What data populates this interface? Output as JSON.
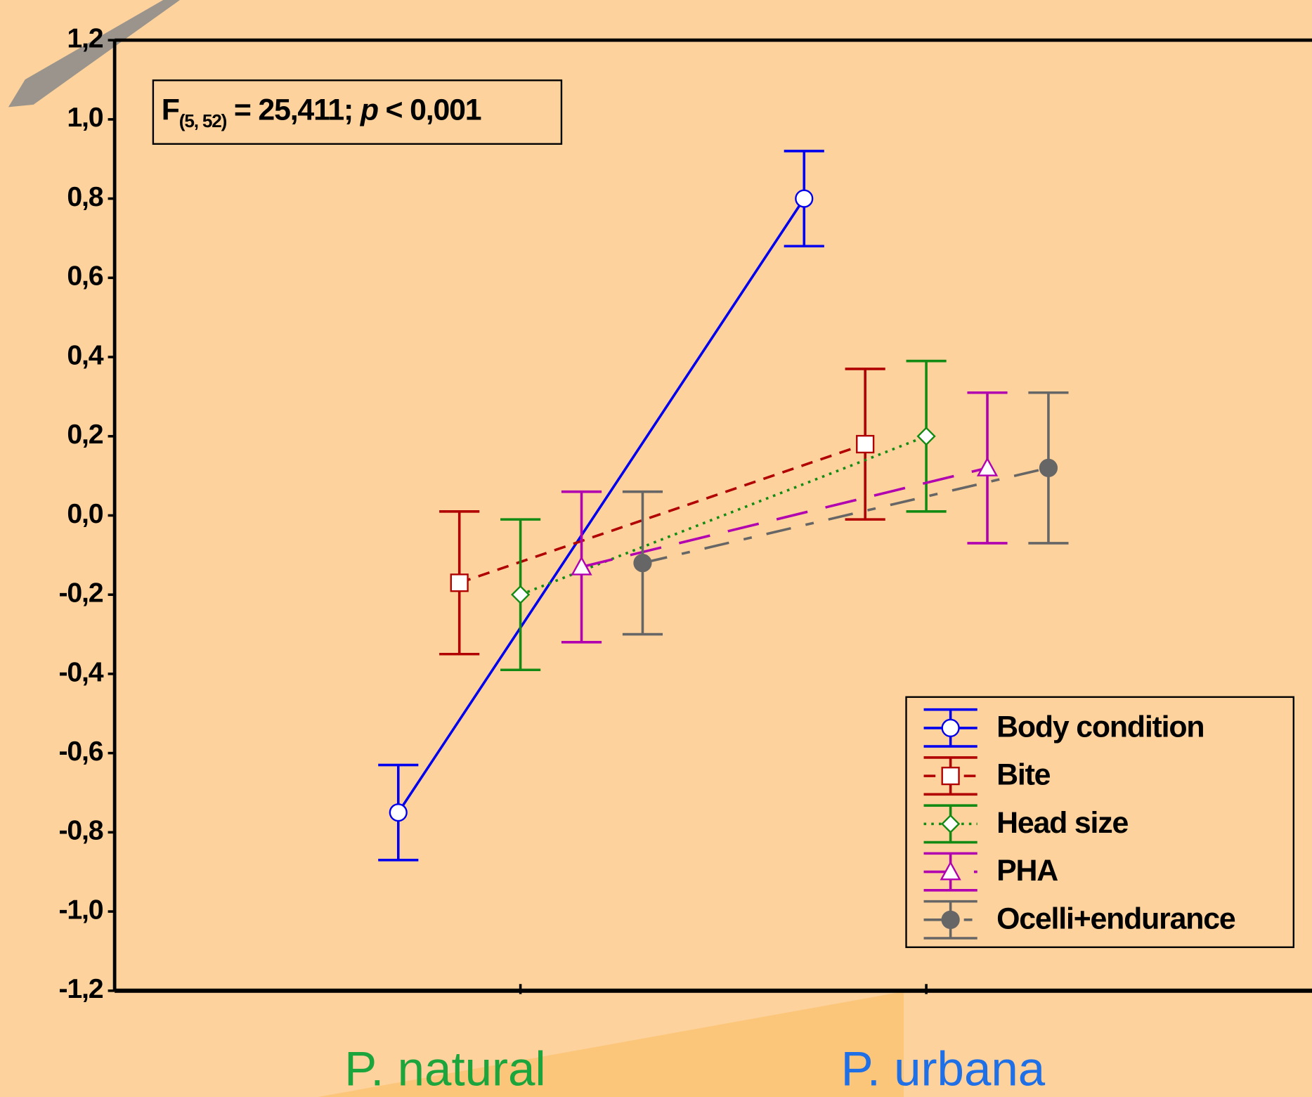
{
  "chart_data": {
    "type": "line",
    "categories": [
      "P. natural",
      "P. urbana"
    ],
    "category_colors": [
      "#1ba53c",
      "#1f6fe6"
    ],
    "annotation": [
      "F",
      "(5, 52)",
      " = 25,411; ",
      "p",
      " < 0,001"
    ],
    "ylim": [
      -1.2,
      1.2
    ],
    "yticks": [
      {
        "value": 1.2,
        "label": "1,2"
      },
      {
        "value": 1.0,
        "label": "1,0"
      },
      {
        "value": 0.8,
        "label": "0,8"
      },
      {
        "value": 0.6,
        "label": "0,6"
      },
      {
        "value": 0.4,
        "label": "0,4"
      },
      {
        "value": 0.2,
        "label": "0,2"
      },
      {
        "value": 0.0,
        "label": "0,0"
      },
      {
        "value": -0.2,
        "label": "-0,2"
      },
      {
        "value": -0.4,
        "label": "-0,4"
      },
      {
        "value": -0.6,
        "label": "-0,6"
      },
      {
        "value": -0.8,
        "label": "-0,8"
      },
      {
        "value": -1.0,
        "label": "-1,0"
      },
      {
        "value": -1.2,
        "label": "-1,2"
      }
    ],
    "legend": "lower right",
    "series": [
      {
        "name": "Body condition",
        "color": "#0000ee",
        "marker": "circle",
        "line_style": "solid",
        "values": [
          -0.75,
          0.8
        ],
        "errors": [
          0.12,
          0.12
        ]
      },
      {
        "name": "Bite",
        "color": "#b00000",
        "marker": "square",
        "line_style": "dashed",
        "values": [
          -0.17,
          0.18
        ],
        "errors": [
          0.18,
          0.19
        ]
      },
      {
        "name": "Head size",
        "color": "#138a13",
        "marker": "diamond",
        "line_style": "dotted",
        "values": [
          -0.2,
          0.2
        ],
        "errors": [
          0.19,
          0.19
        ]
      },
      {
        "name": "PHA",
        "color": "#b000b0",
        "marker": "triangle",
        "line_style": "longdash",
        "values": [
          -0.13,
          0.12
        ],
        "errors": [
          0.19,
          0.19
        ]
      },
      {
        "name": "Ocelli+endurance",
        "color": "#666666",
        "marker": "filled-circle",
        "line_style": "dashdot",
        "values": [
          -0.12,
          0.12
        ],
        "errors": [
          0.18,
          0.19
        ]
      }
    ]
  }
}
